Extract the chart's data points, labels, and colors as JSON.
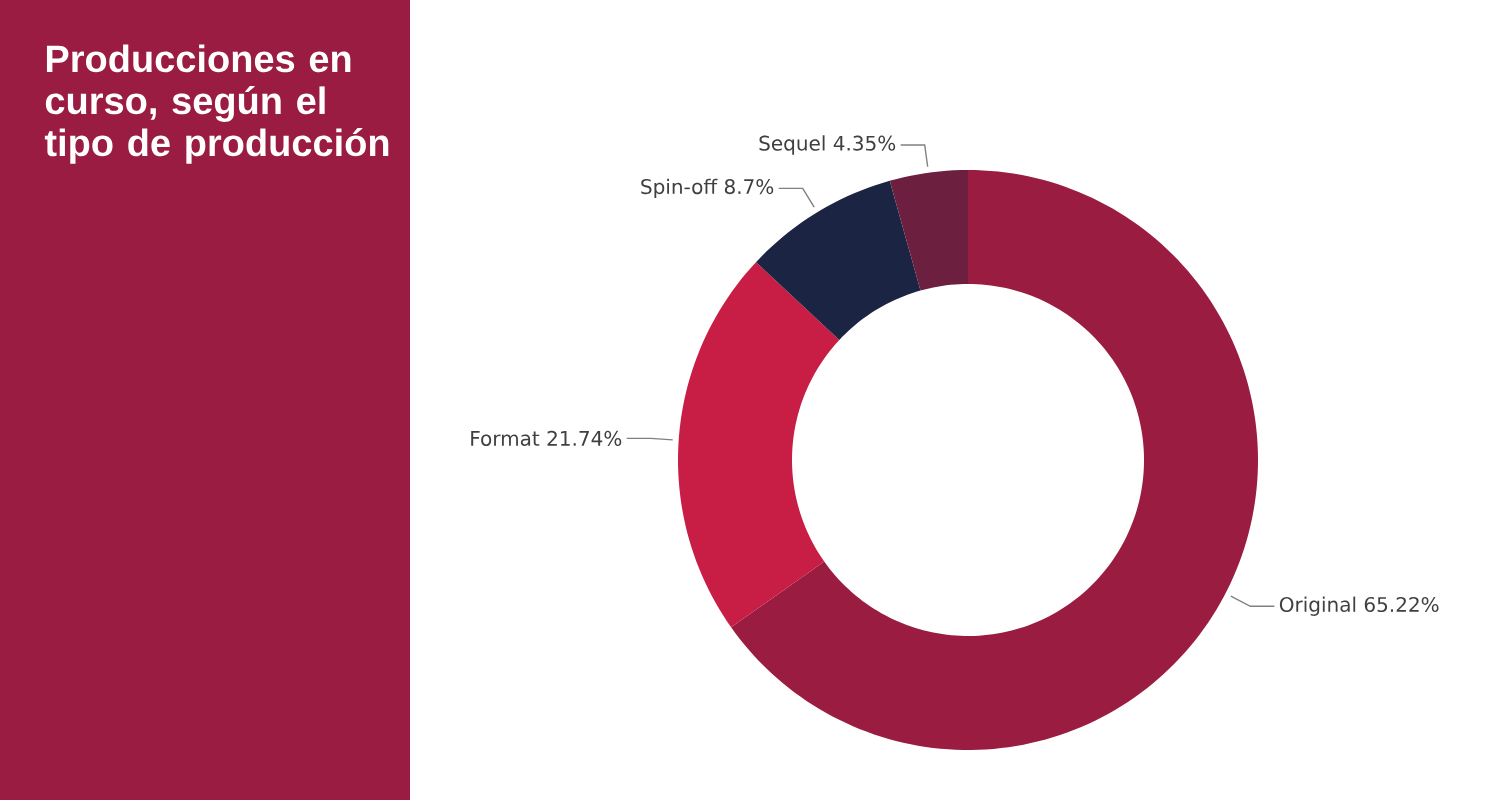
{
  "chart_data": {
    "type": "donut",
    "title": "Producciones en curso, según el tipo de producción",
    "categories": [
      "Original",
      "Format",
      "Spin-off",
      "Sequel"
    ],
    "values": [
      65.22,
      21.74,
      8.7,
      4.35
    ],
    "colors": [
      "#9b1c41",
      "#c81d45",
      "#1b2442",
      "#6c1f3f"
    ],
    "value_labels": [
      "65.22%",
      "21.74%",
      "8.7%",
      "4.35%"
    ]
  }
}
